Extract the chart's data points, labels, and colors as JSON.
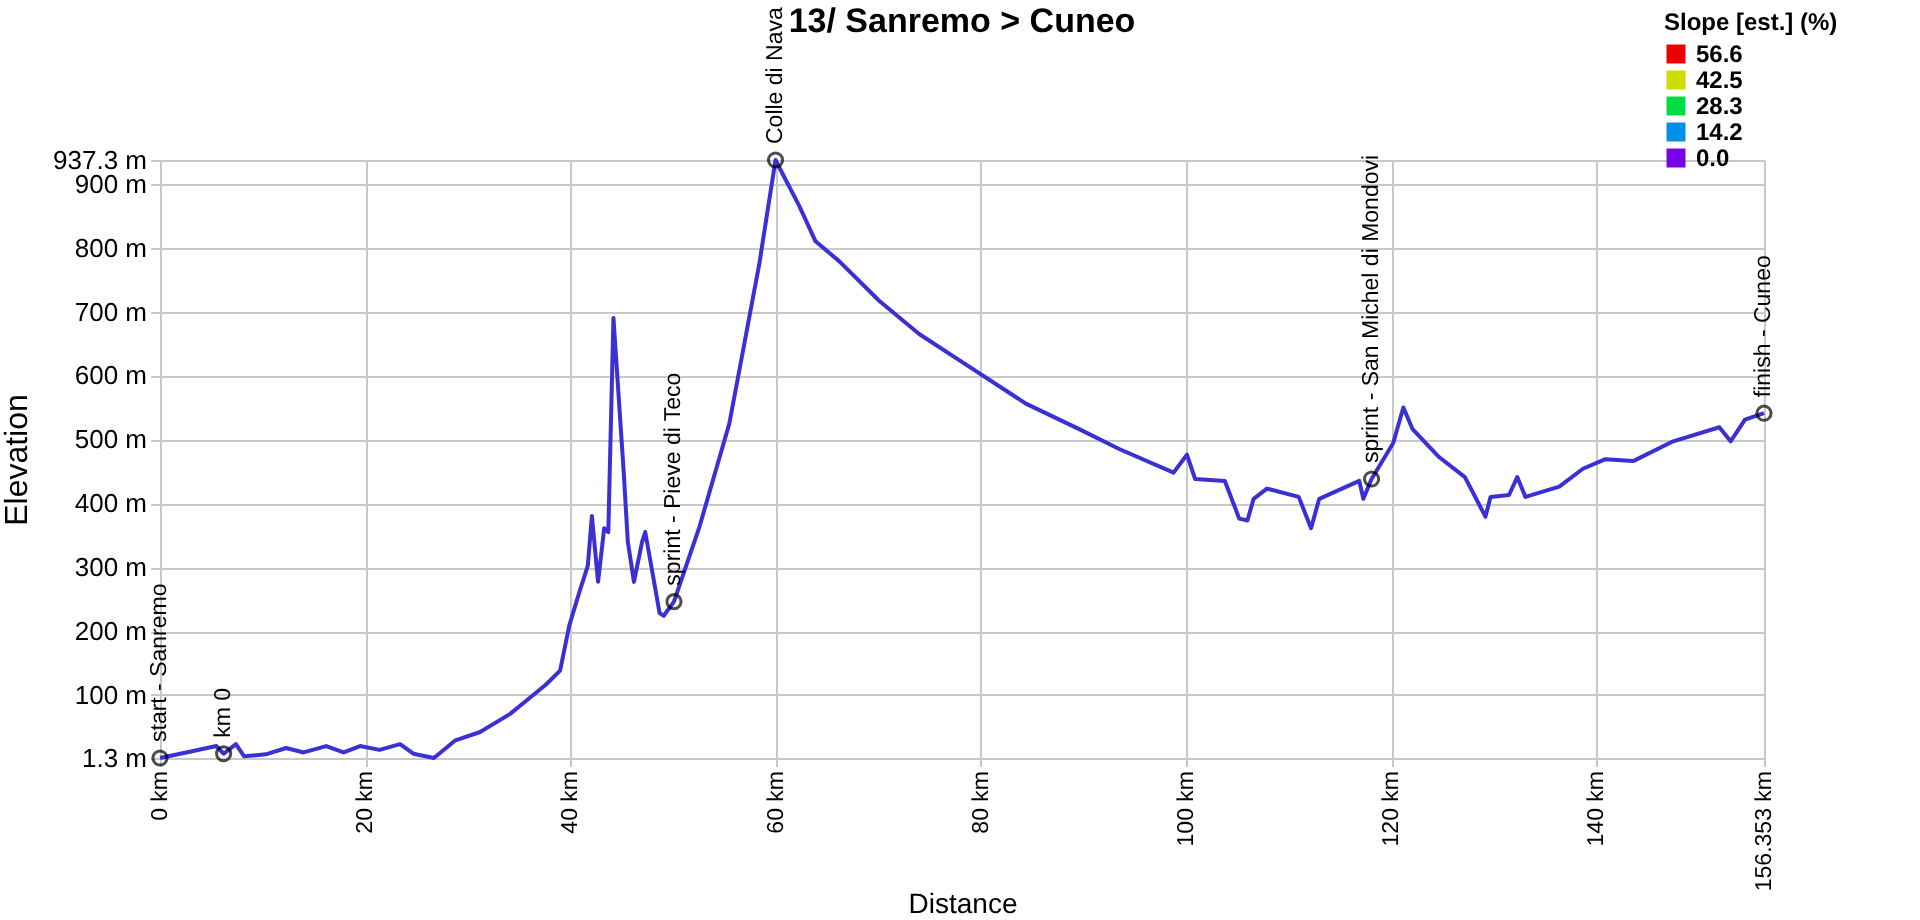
{
  "chart_data": {
    "type": "line",
    "title": "13/ Sanremo > Cuneo",
    "xlabel": "Distance",
    "ylabel": "Elevation",
    "clabel": "Slope [est.] (%)",
    "xlim": [
      0,
      156.353
    ],
    "xticks": [
      {
        "value": 0,
        "label": "0 km"
      },
      {
        "value": 20,
        "label": "20 km"
      },
      {
        "value": 40,
        "label": "40 km"
      },
      {
        "value": 60,
        "label": "60 km"
      },
      {
        "value": 80,
        "label": "80 km"
      },
      {
        "value": 100,
        "label": "100 km"
      },
      {
        "value": 120,
        "label": "120 km"
      },
      {
        "value": 140,
        "label": "140 km"
      },
      {
        "value": 156.353,
        "label": "156.353 km"
      }
    ],
    "ylim": [
      1.3,
      937.3
    ],
    "yticks": [
      {
        "value": 1.3,
        "label": "1.3 m"
      },
      {
        "value": 100,
        "label": "100 m"
      },
      {
        "value": 200,
        "label": "200 m"
      },
      {
        "value": 300,
        "label": "300 m"
      },
      {
        "value": 400,
        "label": "400 m"
      },
      {
        "value": 500,
        "label": "500 m"
      },
      {
        "value": 600,
        "label": "600 m"
      },
      {
        "value": 700,
        "label": "700 m"
      },
      {
        "value": 800,
        "label": "800 m"
      },
      {
        "value": 900,
        "label": "900 m"
      },
      {
        "value": 937.3,
        "label": "937.3 m"
      }
    ],
    "clim": [
      0,
      56.6
    ],
    "cticks": [
      {
        "value": 0,
        "label": "0.0"
      },
      14.2,
      28.3,
      42.5,
      56.6
    ],
    "grid": true,
    "marker": "none",
    "series": [
      {
        "color": "#3b2fd6",
        "x": [
          0,
          2.9,
          5.5,
          6.2,
          7.4,
          8.2,
          10.3,
          12.3,
          14,
          16.2,
          17.9,
          19.5,
          21.4,
          23.4,
          24.7,
          26.7,
          28.8,
          31.2,
          34.1,
          35.7,
          37.6,
          39,
          39.9,
          40.9,
          41.7,
          42.1,
          42.7,
          43.3,
          43.7,
          44.2,
          45.2,
          45.6,
          46.2,
          47,
          47.3,
          48.7,
          49.1,
          50.1,
          52.6,
          55.5,
          58.4,
          60,
          61,
          62.3,
          63.9,
          66.2,
          70.1,
          74,
          77.9,
          84.4,
          89.6,
          93.5,
          98.8,
          100.1,
          100.9,
          103.8,
          105.2,
          106,
          106.6,
          107.9,
          111,
          112.2,
          113,
          116.9,
          117.3,
          118.1,
          120.2,
          121.2,
          122.1,
          124.7,
          127.2,
          129.2,
          129.7,
          131.5,
          132.3,
          133.1,
          136.4,
          138.7,
          140.9,
          143.6,
          147.5,
          152,
          153.1,
          154.5,
          156.353
        ],
        "values": [
          1.3,
          11,
          20,
          8,
          23,
          4,
          7,
          17,
          10,
          20,
          10,
          20,
          14,
          23,
          8,
          1.3,
          29,
          42,
          70,
          91,
          116,
          138,
          209,
          262,
          302,
          380,
          277,
          361,
          355,
          690,
          449,
          340,
          277,
          340,
          355,
          228,
          224,
          246,
          364,
          525,
          773,
          937.3,
          906,
          866,
          810,
          779,
          717,
          665,
          624,
          556,
          516,
          485,
          448,
          476,
          438,
          435,
          376,
          373,
          407,
          423,
          410,
          361,
          407,
          435,
          407,
          438,
          494,
          550,
          516,
          472,
          441,
          379,
          410,
          413,
          441,
          410,
          426,
          454,
          469,
          466,
          497,
          519,
          497,
          531,
          541
        ]
      }
    ],
    "annotations": [
      {
        "text": "start - Sanremo",
        "x": 0,
        "y": 1.3
      },
      {
        "text": "km 0",
        "x": 6.2,
        "y": 8
      },
      {
        "text": "sprint - Pieve di Teco",
        "x": 50.1,
        "y": 246
      },
      {
        "text": "Colle di Nava",
        "x": 60,
        "y": 937.3
      },
      {
        "text": "sprint - San Michel di Mondovi",
        "x": 118.1,
        "y": 438
      },
      {
        "text": "finish - Cuneo",
        "x": 156.353,
        "y": 541
      }
    ]
  }
}
